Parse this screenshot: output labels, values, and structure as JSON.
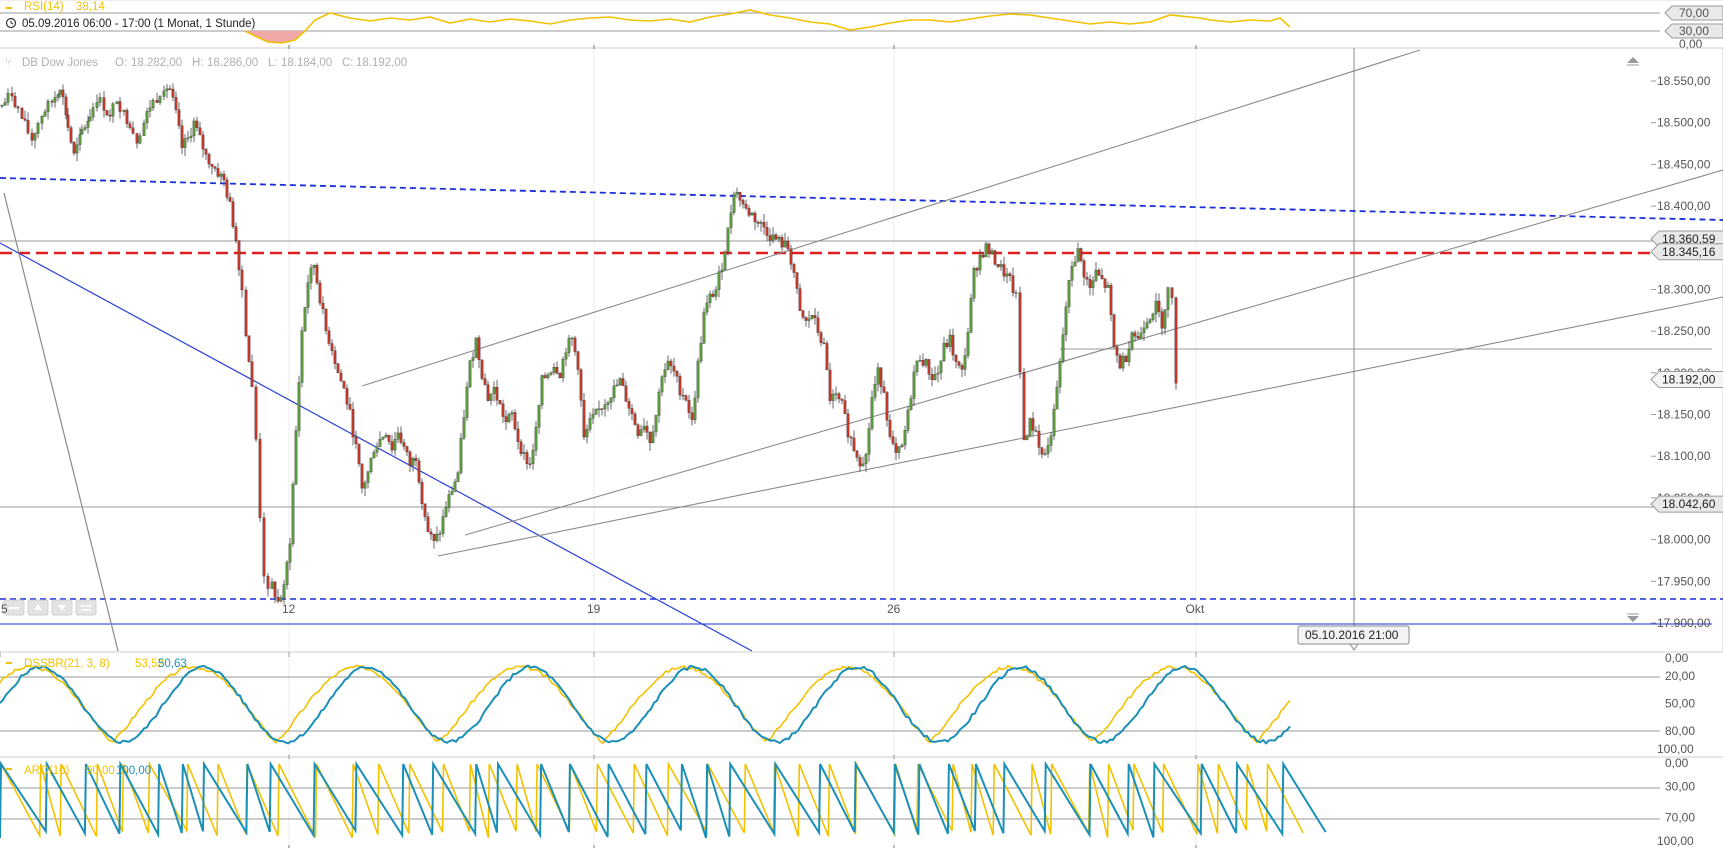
{
  "header": {
    "rsi_label": "RSI(14)",
    "rsi_value": "38,14",
    "range_text": "05.09.2016 06:00 - 17:00 (1 Monat, 1 Stunde)",
    "colors": {
      "rsi": "#f2c200"
    }
  },
  "rsi_panel": {
    "ticks": [
      "70,00",
      "30,00",
      "0,00"
    ],
    "tick_values": [
      70,
      30,
      0
    ],
    "ylim": [
      0,
      100
    ]
  },
  "chart_data": [
    {
      "type": "candlestick",
      "title": "DB Dow Jones",
      "ohlc_text": {
        "o_label": "O:",
        "o": "18.282,00",
        "h_label": "H:",
        "h": "18.286,00",
        "l_label": "L:",
        "l": "18.184,00",
        "c_label": "C:",
        "c": "18.192,00"
      },
      "ylim": [
        17895,
        18575
      ],
      "y_ticks": [
        {
          "value": 18550,
          "label": "18.550,00"
        },
        {
          "value": 18500,
          "label": "18.500,00"
        },
        {
          "value": 18450,
          "label": "18.450,00"
        },
        {
          "value": 18400,
          "label": "18.400,00"
        },
        {
          "value": 18300,
          "label": "18.300,00"
        },
        {
          "value": 18250,
          "label": "18.250,00"
        },
        {
          "value": 18200,
          "label": "18.200,00"
        },
        {
          "value": 18150,
          "label": "18.150,00"
        },
        {
          "value": 18100,
          "label": "18.100,00"
        },
        {
          "value": 18050,
          "label": "18.050,00"
        },
        {
          "value": 18000,
          "label": "18.000,00"
        },
        {
          "value": 17950,
          "label": "17.950,00"
        },
        {
          "value": 17900,
          "label": "17.900,00"
        }
      ],
      "x_ticks": [
        {
          "label": "5",
          "date": "2016-09-05"
        },
        {
          "label": "12",
          "date": "2016-09-12"
        },
        {
          "label": "19",
          "date": "2016-09-19"
        },
        {
          "label": "26",
          "date": "2016-09-26"
        },
        {
          "label": "Okt",
          "date": "2016-10-03"
        }
      ],
      "price_levels": [
        {
          "value": 18360.59,
          "label": "18.360,59",
          "style": "solid-gray"
        },
        {
          "value": 18345.16,
          "label": "18.345,16",
          "style": "dashed-red"
        },
        {
          "value": 18042.6,
          "label": "18.042,60",
          "style": "solid-gray"
        },
        {
          "value": 18192.0,
          "label": "18.192,00",
          "style": "last-price"
        }
      ],
      "crosshair_date_label": "05.10.2016 21:00",
      "line_colors": {
        "up": "#5a9a3c",
        "down": "#c0392b",
        "dashed_blue": "#1a2fd8",
        "dashed_red": "#e02020",
        "trend_blue": "#2a40d8",
        "trend_gray": "#8a8a8a"
      },
      "close_path": [
        [
          0,
          18520
        ],
        [
          10,
          18535
        ],
        [
          20,
          18505
        ],
        [
          30,
          18480
        ],
        [
          40,
          18510
        ],
        [
          50,
          18525
        ],
        [
          58,
          18545
        ],
        [
          66,
          18495
        ],
        [
          72,
          18460
        ],
        [
          80,
          18490
        ],
        [
          88,
          18510
        ],
        [
          95,
          18530
        ],
        [
          102,
          18520
        ],
        [
          108,
          18505
        ],
        [
          115,
          18530
        ],
        [
          122,
          18510
        ],
        [
          128,
          18500
        ],
        [
          135,
          18480
        ],
        [
          142,
          18500
        ],
        [
          148,
          18520
        ],
        [
          155,
          18530
        ],
        [
          162,
          18545
        ],
        [
          168,
          18540
        ],
        [
          174,
          18510
        ],
        [
          180,
          18470
        ],
        [
          186,
          18480
        ],
        [
          192,
          18500
        ],
        [
          198,
          18480
        ],
        [
          204,
          18460
        ],
        [
          210,
          18450
        ],
        [
          216,
          18440
        ],
        [
          222,
          18430
        ],
        [
          228,
          18400
        ],
        [
          234,
          18360
        ],
        [
          240,
          18300
        ],
        [
          244,
          18250
        ],
        [
          250,
          18180
        ],
        [
          254,
          18120
        ],
        [
          258,
          18030
        ],
        [
          262,
          17960
        ],
        [
          266,
          17935
        ],
        [
          270,
          17945
        ],
        [
          276,
          17925
        ],
        [
          282,
          17940
        ],
        [
          288,
          18000
        ],
        [
          294,
          18130
        ],
        [
          300,
          18250
        ],
        [
          306,
          18310
        ],
        [
          312,
          18330
        ],
        [
          318,
          18290
        ],
        [
          324,
          18250
        ],
        [
          330,
          18230
        ],
        [
          336,
          18200
        ],
        [
          342,
          18180
        ],
        [
          348,
          18150
        ],
        [
          354,
          18110
        ],
        [
          360,
          18060
        ],
        [
          366,
          18080
        ],
        [
          372,
          18110
        ],
        [
          378,
          18120
        ],
        [
          384,
          18130
        ],
        [
          390,
          18110
        ],
        [
          396,
          18130
        ],
        [
          402,
          18110
        ],
        [
          408,
          18090
        ],
        [
          414,
          18100
        ],
        [
          420,
          18050
        ],
        [
          426,
          18010
        ],
        [
          432,
          17995
        ],
        [
          438,
          18010
        ],
        [
          444,
          18040
        ],
        [
          450,
          18060
        ],
        [
          456,
          18080
        ],
        [
          462,
          18150
        ],
        [
          468,
          18210
        ],
        [
          474,
          18240
        ],
        [
          480,
          18200
        ],
        [
          486,
          18170
        ],
        [
          492,
          18180
        ],
        [
          498,
          18160
        ],
        [
          504,
          18140
        ],
        [
          510,
          18150
        ],
        [
          516,
          18120
        ],
        [
          522,
          18100
        ],
        [
          528,
          18090
        ],
        [
          534,
          18130
        ],
        [
          540,
          18190
        ],
        [
          546,
          18200
        ],
        [
          552,
          18210
        ],
        [
          558,
          18200
        ],
        [
          564,
          18230
        ],
        [
          570,
          18240
        ],
        [
          576,
          18210
        ],
        [
          582,
          18120
        ],
        [
          588,
          18140
        ],
        [
          594,
          18150
        ],
        [
          600,
          18160
        ],
        [
          606,
          18170
        ],
        [
          612,
          18180
        ],
        [
          618,
          18190
        ],
        [
          624,
          18170
        ],
        [
          630,
          18150
        ],
        [
          636,
          18130
        ],
        [
          642,
          18140
        ],
        [
          648,
          18120
        ],
        [
          654,
          18150
        ],
        [
          660,
          18200
        ],
        [
          666,
          18210
        ],
        [
          672,
          18200
        ],
        [
          678,
          18180
        ],
        [
          684,
          18170
        ],
        [
          690,
          18140
        ],
        [
          696,
          18210
        ],
        [
          702,
          18270
        ],
        [
          708,
          18290
        ],
        [
          714,
          18300
        ],
        [
          720,
          18330
        ],
        [
          726,
          18370
        ],
        [
          732,
          18420
        ],
        [
          738,
          18410
        ],
        [
          744,
          18395
        ],
        [
          750,
          18390
        ],
        [
          756,
          18380
        ],
        [
          762,
          18375
        ],
        [
          768,
          18365
        ],
        [
          774,
          18360
        ],
        [
          780,
          18355
        ],
        [
          786,
          18350
        ],
        [
          792,
          18320
        ],
        [
          798,
          18270
        ],
        [
          804,
          18260
        ],
        [
          810,
          18270
        ],
        [
          816,
          18250
        ],
        [
          822,
          18230
        ],
        [
          828,
          18170
        ],
        [
          834,
          18170
        ],
        [
          840,
          18160
        ],
        [
          846,
          18130
        ],
        [
          852,
          18110
        ],
        [
          858,
          18095
        ],
        [
          864,
          18100
        ],
        [
          870,
          18170
        ],
        [
          876,
          18200
        ],
        [
          882,
          18180
        ],
        [
          888,
          18120
        ],
        [
          894,
          18100
        ],
        [
          900,
          18110
        ],
        [
          906,
          18150
        ],
        [
          912,
          18200
        ],
        [
          918,
          18220
        ],
        [
          924,
          18210
        ],
        [
          930,
          18195
        ],
        [
          936,
          18200
        ],
        [
          942,
          18230
        ],
        [
          948,
          18240
        ],
        [
          954,
          18210
        ],
        [
          960,
          18200
        ],
        [
          966,
          18250
        ],
        [
          972,
          18320
        ],
        [
          978,
          18340
        ],
        [
          984,
          18350
        ],
        [
          990,
          18340
        ],
        [
          996,
          18330
        ],
        [
          1002,
          18320
        ],
        [
          1008,
          18310
        ],
        [
          1014,
          18290
        ],
        [
          1018,
          18200
        ],
        [
          1022,
          18120
        ],
        [
          1028,
          18140
        ],
        [
          1034,
          18130
        ],
        [
          1040,
          18100
        ],
        [
          1046,
          18110
        ],
        [
          1052,
          18150
        ],
        [
          1058,
          18210
        ],
        [
          1064,
          18280
        ],
        [
          1070,
          18330
        ],
        [
          1076,
          18345
        ],
        [
          1082,
          18320
        ],
        [
          1088,
          18300
        ],
        [
          1094,
          18320
        ],
        [
          1100,
          18310
        ],
        [
          1106,
          18300
        ],
        [
          1112,
          18230
        ],
        [
          1118,
          18210
        ],
        [
          1124,
          18220
        ],
        [
          1130,
          18250
        ],
        [
          1136,
          18240
        ],
        [
          1142,
          18260
        ],
        [
          1148,
          18270
        ],
        [
          1154,
          18280
        ],
        [
          1160,
          18260
        ],
        [
          1166,
          18300
        ],
        [
          1170,
          18285
        ],
        [
          1174,
          18192
        ]
      ]
    },
    {
      "type": "line",
      "title": "DSSBR(21, 3, 8)",
      "series": [
        {
          "name": "DSSBR(21, 3, 8)",
          "value_label": "53,52",
          "color": "#f2c200"
        },
        {
          "name": "",
          "value_label": "50,63",
          "color": "#1a8fb8"
        }
      ],
      "ylim": [
        0,
        100
      ],
      "y_ticks": [
        {
          "value": 100,
          "label": "100,00"
        },
        {
          "value": 80,
          "label": "80,00"
        },
        {
          "value": 50,
          "label": "50,00"
        },
        {
          "value": 20,
          "label": "20,00"
        },
        {
          "value": 0,
          "label": "0,00"
        }
      ]
    },
    {
      "type": "line",
      "title": "ARO(10)",
      "series": [
        {
          "name": "ARO(10)",
          "value_label": "90,00",
          "color": "#f2c200"
        },
        {
          "name": "",
          "value_label": "100,00",
          "color": "#1a8fb8"
        }
      ],
      "ylim": [
        0,
        100
      ],
      "y_ticks": [
        {
          "value": 100,
          "label": "100,00"
        },
        {
          "value": 70,
          "label": "70,00"
        },
        {
          "value": 30,
          "label": "30,00"
        },
        {
          "value": 0,
          "label": "0,00"
        }
      ]
    }
  ]
}
